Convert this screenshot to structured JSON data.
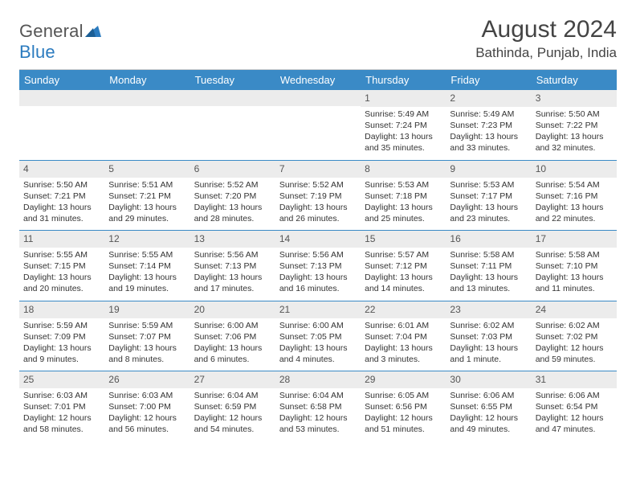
{
  "logo": {
    "word1": "General",
    "word2": "Blue"
  },
  "title": "August 2024",
  "location": "Bathinda, Punjab, India",
  "colors": {
    "header_bg": "#3a8ac6",
    "header_text": "#ffffff",
    "daynum_bg": "#ececec",
    "week_border": "#3a8ac6",
    "text": "#333333",
    "logo_gray": "#555555",
    "logo_blue": "#2b7bbf"
  },
  "typography": {
    "title_fontsize": 30,
    "location_fontsize": 17,
    "dayhead_fontsize": 13,
    "cell_fontsize": 10.5,
    "font_family": "Arial"
  },
  "dayHeaders": [
    "Sunday",
    "Monday",
    "Tuesday",
    "Wednesday",
    "Thursday",
    "Friday",
    "Saturday"
  ],
  "weeks": [
    [
      {
        "n": "",
        "lines": []
      },
      {
        "n": "",
        "lines": []
      },
      {
        "n": "",
        "lines": []
      },
      {
        "n": "",
        "lines": []
      },
      {
        "n": "1",
        "lines": [
          "Sunrise: 5:49 AM",
          "Sunset: 7:24 PM",
          "Daylight: 13 hours",
          "and 35 minutes."
        ]
      },
      {
        "n": "2",
        "lines": [
          "Sunrise: 5:49 AM",
          "Sunset: 7:23 PM",
          "Daylight: 13 hours",
          "and 33 minutes."
        ]
      },
      {
        "n": "3",
        "lines": [
          "Sunrise: 5:50 AM",
          "Sunset: 7:22 PM",
          "Daylight: 13 hours",
          "and 32 minutes."
        ]
      }
    ],
    [
      {
        "n": "4",
        "lines": [
          "Sunrise: 5:50 AM",
          "Sunset: 7:21 PM",
          "Daylight: 13 hours",
          "and 31 minutes."
        ]
      },
      {
        "n": "5",
        "lines": [
          "Sunrise: 5:51 AM",
          "Sunset: 7:21 PM",
          "Daylight: 13 hours",
          "and 29 minutes."
        ]
      },
      {
        "n": "6",
        "lines": [
          "Sunrise: 5:52 AM",
          "Sunset: 7:20 PM",
          "Daylight: 13 hours",
          "and 28 minutes."
        ]
      },
      {
        "n": "7",
        "lines": [
          "Sunrise: 5:52 AM",
          "Sunset: 7:19 PM",
          "Daylight: 13 hours",
          "and 26 minutes."
        ]
      },
      {
        "n": "8",
        "lines": [
          "Sunrise: 5:53 AM",
          "Sunset: 7:18 PM",
          "Daylight: 13 hours",
          "and 25 minutes."
        ]
      },
      {
        "n": "9",
        "lines": [
          "Sunrise: 5:53 AM",
          "Sunset: 7:17 PM",
          "Daylight: 13 hours",
          "and 23 minutes."
        ]
      },
      {
        "n": "10",
        "lines": [
          "Sunrise: 5:54 AM",
          "Sunset: 7:16 PM",
          "Daylight: 13 hours",
          "and 22 minutes."
        ]
      }
    ],
    [
      {
        "n": "11",
        "lines": [
          "Sunrise: 5:55 AM",
          "Sunset: 7:15 PM",
          "Daylight: 13 hours",
          "and 20 minutes."
        ]
      },
      {
        "n": "12",
        "lines": [
          "Sunrise: 5:55 AM",
          "Sunset: 7:14 PM",
          "Daylight: 13 hours",
          "and 19 minutes."
        ]
      },
      {
        "n": "13",
        "lines": [
          "Sunrise: 5:56 AM",
          "Sunset: 7:13 PM",
          "Daylight: 13 hours",
          "and 17 minutes."
        ]
      },
      {
        "n": "14",
        "lines": [
          "Sunrise: 5:56 AM",
          "Sunset: 7:13 PM",
          "Daylight: 13 hours",
          "and 16 minutes."
        ]
      },
      {
        "n": "15",
        "lines": [
          "Sunrise: 5:57 AM",
          "Sunset: 7:12 PM",
          "Daylight: 13 hours",
          "and 14 minutes."
        ]
      },
      {
        "n": "16",
        "lines": [
          "Sunrise: 5:58 AM",
          "Sunset: 7:11 PM",
          "Daylight: 13 hours",
          "and 13 minutes."
        ]
      },
      {
        "n": "17",
        "lines": [
          "Sunrise: 5:58 AM",
          "Sunset: 7:10 PM",
          "Daylight: 13 hours",
          "and 11 minutes."
        ]
      }
    ],
    [
      {
        "n": "18",
        "lines": [
          "Sunrise: 5:59 AM",
          "Sunset: 7:09 PM",
          "Daylight: 13 hours",
          "and 9 minutes."
        ]
      },
      {
        "n": "19",
        "lines": [
          "Sunrise: 5:59 AM",
          "Sunset: 7:07 PM",
          "Daylight: 13 hours",
          "and 8 minutes."
        ]
      },
      {
        "n": "20",
        "lines": [
          "Sunrise: 6:00 AM",
          "Sunset: 7:06 PM",
          "Daylight: 13 hours",
          "and 6 minutes."
        ]
      },
      {
        "n": "21",
        "lines": [
          "Sunrise: 6:00 AM",
          "Sunset: 7:05 PM",
          "Daylight: 13 hours",
          "and 4 minutes."
        ]
      },
      {
        "n": "22",
        "lines": [
          "Sunrise: 6:01 AM",
          "Sunset: 7:04 PM",
          "Daylight: 13 hours",
          "and 3 minutes."
        ]
      },
      {
        "n": "23",
        "lines": [
          "Sunrise: 6:02 AM",
          "Sunset: 7:03 PM",
          "Daylight: 13 hours",
          "and 1 minute."
        ]
      },
      {
        "n": "24",
        "lines": [
          "Sunrise: 6:02 AM",
          "Sunset: 7:02 PM",
          "Daylight: 12 hours",
          "and 59 minutes."
        ]
      }
    ],
    [
      {
        "n": "25",
        "lines": [
          "Sunrise: 6:03 AM",
          "Sunset: 7:01 PM",
          "Daylight: 12 hours",
          "and 58 minutes."
        ]
      },
      {
        "n": "26",
        "lines": [
          "Sunrise: 6:03 AM",
          "Sunset: 7:00 PM",
          "Daylight: 12 hours",
          "and 56 minutes."
        ]
      },
      {
        "n": "27",
        "lines": [
          "Sunrise: 6:04 AM",
          "Sunset: 6:59 PM",
          "Daylight: 12 hours",
          "and 54 minutes."
        ]
      },
      {
        "n": "28",
        "lines": [
          "Sunrise: 6:04 AM",
          "Sunset: 6:58 PM",
          "Daylight: 12 hours",
          "and 53 minutes."
        ]
      },
      {
        "n": "29",
        "lines": [
          "Sunrise: 6:05 AM",
          "Sunset: 6:56 PM",
          "Daylight: 12 hours",
          "and 51 minutes."
        ]
      },
      {
        "n": "30",
        "lines": [
          "Sunrise: 6:06 AM",
          "Sunset: 6:55 PM",
          "Daylight: 12 hours",
          "and 49 minutes."
        ]
      },
      {
        "n": "31",
        "lines": [
          "Sunrise: 6:06 AM",
          "Sunset: 6:54 PM",
          "Daylight: 12 hours",
          "and 47 minutes."
        ]
      }
    ]
  ]
}
